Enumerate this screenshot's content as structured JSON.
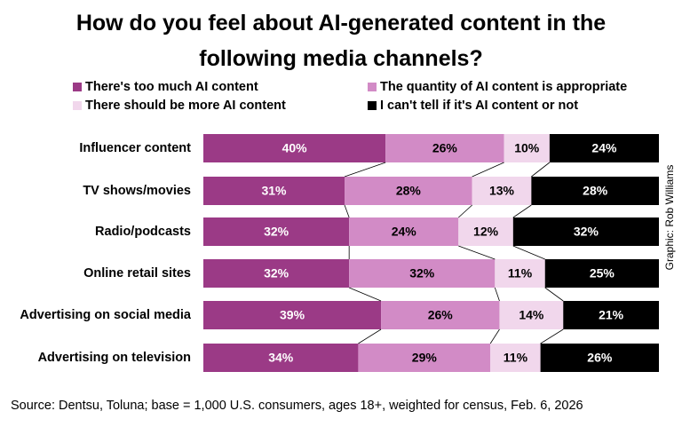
{
  "chart_data": {
    "type": "stacked-bar-horizontal",
    "title": "How do you feel about AI-generated content in the following media channels?",
    "credit": "Graphic: Rob Williams",
    "source": "Source: Dentsu, Toluna;  base = 1,000 U.S. consumers, ages 18+, weighted for census, Feb. 6, 2026",
    "categories": [
      "Influencer content",
      "TV shows/movies",
      "Radio/podcasts",
      "Online retail sites",
      "Advertising on social media",
      "Advertising on television"
    ],
    "series": [
      {
        "name": "There's too much AI content",
        "color": "#9b3a86",
        "label_color": "#ffffff",
        "values": [
          40,
          31,
          32,
          32,
          39,
          34
        ],
        "value_labels": [
          "40%",
          "31%",
          "32%",
          "32%",
          "39%",
          "34%"
        ]
      },
      {
        "name": "The quantity of AI content is appropriate",
        "color": "#d28bc6",
        "label_color": "#000000",
        "values": [
          26,
          28,
          24,
          32,
          26,
          29
        ],
        "value_labels": [
          "26%",
          "28%",
          "24%",
          "32%",
          "26%",
          "29%"
        ]
      },
      {
        "name": "There should be more AI content",
        "color": "#f1d7ec",
        "label_color": "#000000",
        "values": [
          10,
          13,
          12,
          11,
          14,
          11
        ],
        "value_labels": [
          "10%",
          "13%",
          "12%",
          "11%",
          "14%",
          "11%"
        ]
      },
      {
        "name": "I can't tell if it's AI content or not",
        "color": "#000000",
        "label_color": "#ffffff",
        "values": [
          24,
          28,
          32,
          25,
          21,
          26
        ],
        "value_labels": [
          "24%",
          "28%",
          "32%",
          "25%",
          "21%",
          "26%"
        ]
      }
    ]
  }
}
